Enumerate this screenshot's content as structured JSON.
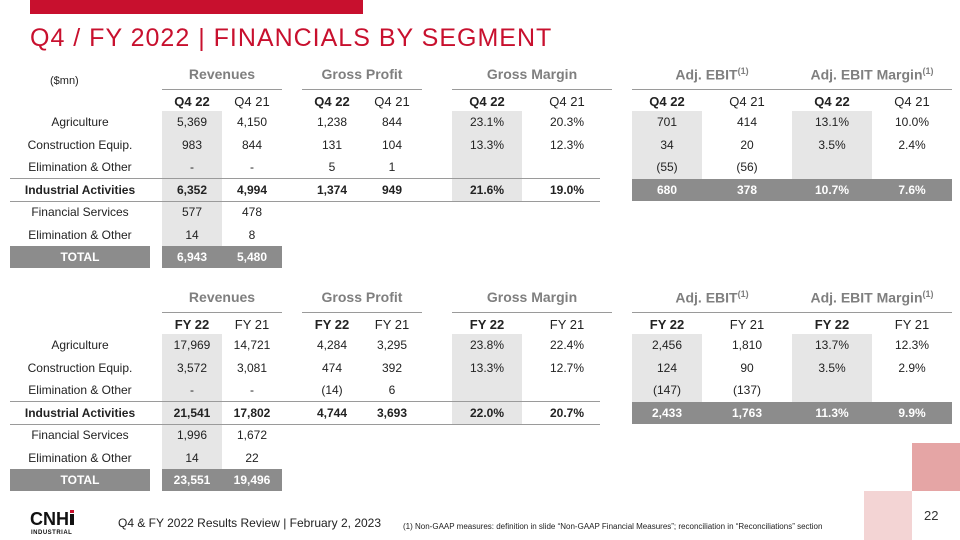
{
  "title": "Q4 / FY 2022 | FINANCIALS BY SEGMENT",
  "units": "($mn)",
  "groups": {
    "revenues": "Revenues",
    "gross_profit": "Gross Profit",
    "gross_margin": "Gross Margin",
    "adj_ebit": "Adj. EBIT",
    "adj_ebit_margin": "Adj. EBIT Margin",
    "footnote_marker": "(1)"
  },
  "q4": {
    "headers": [
      "Q4 22",
      "Q4 21",
      "Q4 22",
      "Q4 21",
      "Q4 22",
      "Q4 21",
      "Q4 22",
      "Q4 21",
      "Q4 22",
      "Q4 21"
    ],
    "rows": [
      {
        "label": "Agriculture",
        "values": [
          "5,369",
          "4,150",
          "1,238",
          "844",
          "23.1%",
          "20.3%",
          "701",
          "414",
          "13.1%",
          "10.0%"
        ]
      },
      {
        "label": "Construction Equip.",
        "values": [
          "983",
          "844",
          "131",
          "104",
          "13.3%",
          "12.3%",
          "34",
          "20",
          "3.5%",
          "2.4%"
        ]
      },
      {
        "label": "Elimination & Other",
        "values": [
          "-",
          "-",
          "5",
          "1",
          "",
          "",
          "(55)",
          "(56)",
          "",
          ""
        ]
      },
      {
        "label": "Industrial Activities",
        "values": [
          "6,352",
          "4,994",
          "1,374",
          "949",
          "21.6%",
          "19.0%",
          "680",
          "378",
          "10.7%",
          "7.6%"
        ]
      },
      {
        "label": "Financial Services",
        "values": [
          "577",
          "478",
          "",
          "",
          "",
          "",
          "",
          "",
          "",
          ""
        ]
      },
      {
        "label": "Elimination & Other",
        "values": [
          "14",
          "8",
          "",
          "",
          "",
          "",
          "",
          "",
          "",
          ""
        ]
      },
      {
        "label": "TOTAL",
        "values": [
          "6,943",
          "5,480",
          "",
          "",
          "",
          "",
          "",
          "",
          "",
          ""
        ]
      }
    ]
  },
  "fy": {
    "headers": [
      "FY 22",
      "FY 21",
      "FY 22",
      "FY 21",
      "FY 22",
      "FY 21",
      "FY 22",
      "FY 21",
      "FY 22",
      "FY 21"
    ],
    "rows": [
      {
        "label": "Agriculture",
        "values": [
          "17,969",
          "14,721",
          "4,284",
          "3,295",
          "23.8%",
          "22.4%",
          "2,456",
          "1,810",
          "13.7%",
          "12.3%"
        ]
      },
      {
        "label": "Construction Equip.",
        "values": [
          "3,572",
          "3,081",
          "474",
          "392",
          "13.3%",
          "12.7%",
          "124",
          "90",
          "3.5%",
          "2.9%"
        ]
      },
      {
        "label": "Elimination & Other",
        "values": [
          "-",
          "-",
          "(14)",
          "6",
          "",
          "",
          "(147)",
          "(137)",
          "",
          ""
        ]
      },
      {
        "label": "Industrial Activities",
        "values": [
          "21,541",
          "17,802",
          "4,744",
          "3,693",
          "22.0%",
          "20.7%",
          "2,433",
          "1,763",
          "11.3%",
          "9.9%"
        ]
      },
      {
        "label": "Financial Services",
        "values": [
          "1,996",
          "1,672",
          "",
          "",
          "",
          "",
          "",
          "",
          "",
          ""
        ]
      },
      {
        "label": "Elimination & Other",
        "values": [
          "14",
          "22",
          "",
          "",
          "",
          "",
          "",
          "",
          "",
          ""
        ]
      },
      {
        "label": "TOTAL",
        "values": [
          "23,551",
          "19,496",
          "",
          "",
          "",
          "",
          "",
          "",
          "",
          ""
        ]
      }
    ]
  },
  "footer": "Q4 & FY 2022 Results Review | February 2, 2023",
  "footnote": "(1) Non-GAAP measures: definition in slide “Non-GAAP Financial Measures”; reconciliation in “Reconciliations” section",
  "page_number": "22",
  "logo": {
    "text": "CNH",
    "subtext": "INDUSTRIAL"
  },
  "colors": {
    "accent": "#c8102e",
    "header_gray": "#7f7f7f",
    "shade": "#e6e6e6",
    "dark": "#8c8c8c"
  }
}
